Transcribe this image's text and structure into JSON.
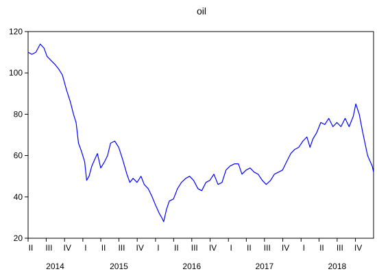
{
  "chart_data": {
    "type": "line",
    "title": "oil",
    "xlabel": "",
    "ylabel": "",
    "ylim": [
      20,
      120
    ],
    "y_ticks": [
      20,
      40,
      60,
      80,
      100,
      120
    ],
    "x_range": [
      "2014-04-01",
      "2018-12-31"
    ],
    "quarter_ticks": [
      {
        "label": "II",
        "date": "2014-04-01"
      },
      {
        "label": "III",
        "date": "2014-07-01"
      },
      {
        "label": "IV",
        "date": "2014-10-01"
      },
      {
        "label": "I",
        "date": "2015-01-01"
      },
      {
        "label": "II",
        "date": "2015-04-01"
      },
      {
        "label": "III",
        "date": "2015-07-01"
      },
      {
        "label": "IV",
        "date": "2015-10-01"
      },
      {
        "label": "I",
        "date": "2016-01-01"
      },
      {
        "label": "II",
        "date": "2016-04-01"
      },
      {
        "label": "III",
        "date": "2016-07-01"
      },
      {
        "label": "IV",
        "date": "2016-10-01"
      },
      {
        "label": "I",
        "date": "2017-01-01"
      },
      {
        "label": "II",
        "date": "2017-04-01"
      },
      {
        "label": "III",
        "date": "2017-07-01"
      },
      {
        "label": "IV",
        "date": "2017-10-01"
      },
      {
        "label": "I",
        "date": "2018-01-01"
      },
      {
        "label": "II",
        "date": "2018-04-01"
      },
      {
        "label": "III",
        "date": "2018-07-01"
      },
      {
        "label": "IV",
        "date": "2018-10-01"
      }
    ],
    "year_labels": [
      {
        "label": "2014",
        "date": "2014-08-15"
      },
      {
        "label": "2015",
        "date": "2015-07-01"
      },
      {
        "label": "2016",
        "date": "2016-07-01"
      },
      {
        "label": "2017",
        "date": "2017-07-01"
      },
      {
        "label": "2018",
        "date": "2018-07-01"
      }
    ],
    "grid": false,
    "legend": "none",
    "series": [
      {
        "color": "#0000ff",
        "x": [
          "2014-04-01",
          "2014-04-20",
          "2014-05-10",
          "2014-06-01",
          "2014-06-20",
          "2014-07-05",
          "2014-07-25",
          "2014-08-15",
          "2014-09-01",
          "2014-09-20",
          "2014-10-10",
          "2014-10-30",
          "2014-11-15",
          "2014-11-28",
          "2014-12-10",
          "2014-12-25",
          "2015-01-10",
          "2015-01-20",
          "2015-02-01",
          "2015-02-15",
          "2015-03-01",
          "2015-03-15",
          "2015-04-01",
          "2015-04-20",
          "2015-05-05",
          "2015-05-20",
          "2015-06-10",
          "2015-06-30",
          "2015-07-20",
          "2015-08-10",
          "2015-08-25",
          "2015-09-10",
          "2015-09-30",
          "2015-10-20",
          "2015-11-05",
          "2015-11-25",
          "2015-12-15",
          "2016-01-01",
          "2016-01-20",
          "2016-02-01",
          "2016-02-11",
          "2016-02-25",
          "2016-03-10",
          "2016-03-31",
          "2016-04-20",
          "2016-05-10",
          "2016-06-01",
          "2016-06-20",
          "2016-07-10",
          "2016-08-01",
          "2016-08-20",
          "2016-09-10",
          "2016-09-30",
          "2016-10-20",
          "2016-11-10",
          "2016-11-30",
          "2016-12-20",
          "2017-01-10",
          "2017-02-01",
          "2017-02-20",
          "2017-03-10",
          "2017-03-31",
          "2017-04-20",
          "2017-05-10",
          "2017-05-30",
          "2017-06-20",
          "2017-07-10",
          "2017-08-01",
          "2017-08-20",
          "2017-09-10",
          "2017-09-30",
          "2017-10-20",
          "2017-11-10",
          "2017-11-30",
          "2017-12-20",
          "2018-01-10",
          "2018-01-30",
          "2018-02-15",
          "2018-03-01",
          "2018-03-20",
          "2018-04-10",
          "2018-04-30",
          "2018-05-20",
          "2018-06-10",
          "2018-06-30",
          "2018-07-20",
          "2018-08-10",
          "2018-08-30",
          "2018-09-20",
          "2018-10-03",
          "2018-10-20",
          "2018-11-05",
          "2018-11-20",
          "2018-12-01",
          "2018-12-10",
          "2018-12-24",
          "2018-12-31"
        ],
        "y": [
          110,
          109,
          110,
          114,
          112,
          108,
          106,
          104,
          102,
          99,
          92,
          86,
          80,
          76,
          66,
          62,
          57,
          48,
          50,
          55,
          58,
          61,
          54,
          57,
          60,
          66,
          67,
          64,
          58,
          51,
          47,
          49,
          47,
          50,
          46,
          44,
          40,
          36,
          32,
          30,
          28,
          34,
          38,
          39,
          44,
          47,
          49,
          50,
          48,
          44,
          43,
          47,
          48,
          51,
          46,
          47,
          53,
          55,
          56,
          56,
          51,
          53,
          54,
          52,
          51,
          48,
          46,
          48,
          51,
          52,
          53,
          57,
          61,
          63,
          64,
          67,
          69,
          64,
          68,
          71,
          76,
          75,
          78,
          74,
          76,
          74,
          78,
          74,
          79,
          85,
          80,
          72,
          65,
          60,
          58,
          55,
          52
        ]
      }
    ]
  }
}
